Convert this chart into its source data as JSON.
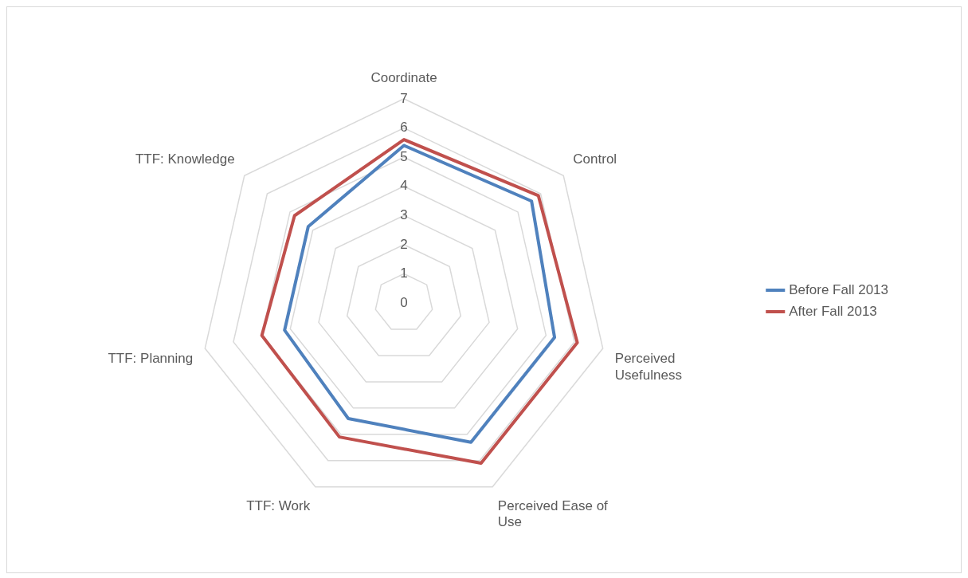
{
  "chart_data": {
    "type": "radar",
    "categories": [
      "Coordinate",
      "Control",
      "Perceived Usefulness",
      "Perceived Ease of Use",
      "TTF: Work",
      "TTF: Planning",
      "TTF: Knowledge"
    ],
    "series": [
      {
        "name": "Before Fall 2013",
        "color": "#4f81bd",
        "values": [
          5.4,
          5.6,
          5.3,
          5.3,
          4.4,
          4.2,
          4.2
        ]
      },
      {
        "name": "After Fall 2013",
        "color": "#c0504d",
        "values": [
          5.6,
          5.9,
          6.1,
          6.1,
          5.1,
          5.0,
          4.8
        ]
      }
    ],
    "ylim": [
      0,
      7
    ],
    "yticks": [
      0,
      1,
      2,
      3,
      4,
      5,
      6,
      7
    ],
    "grid": true,
    "legend": "right",
    "marker": "none",
    "line_style": "solid"
  }
}
